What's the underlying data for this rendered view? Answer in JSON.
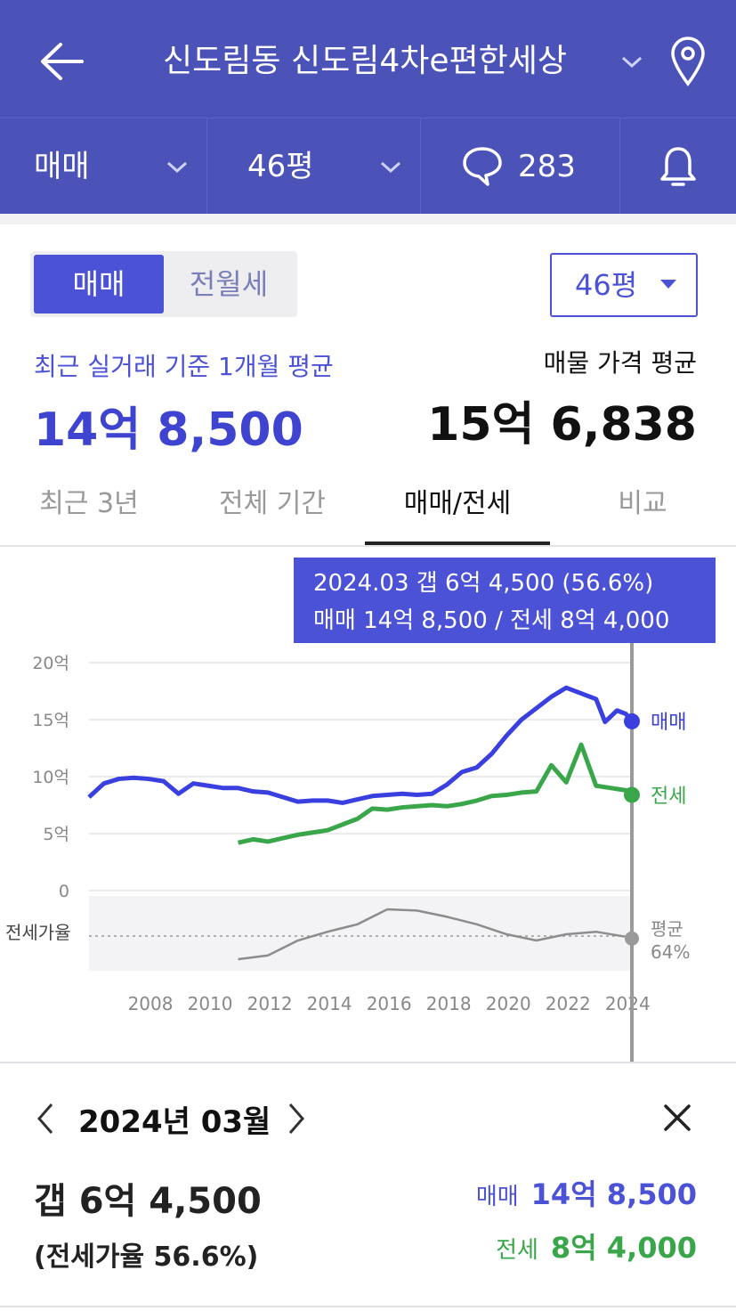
{
  "header": {
    "title": "신도림동 신도림4차e편한세상",
    "filter_type": "매매",
    "filter_size": "46평",
    "comment_count": "283"
  },
  "summary": {
    "toggle": [
      "매매",
      "전월세"
    ],
    "size_select": "46평",
    "left_label": "최근 실거래 기준 1개월 평균",
    "left_price": "14억 8,500",
    "right_label": "매물 가격 평균",
    "right_price": "15억 6,838"
  },
  "tabs": [
    "최근 3년",
    "전체 기간",
    "매매/전세",
    "비교"
  ],
  "tooltip": {
    "line1": "2024.03  갭 6억 4,500 (56.6%)",
    "line2": "매매 14억 8,500 / 전세 8억 4,000"
  },
  "colors": {
    "header": "#4b52b8",
    "accent": "#4b52d6",
    "sale": "#3a3fe0",
    "jeonse": "#3aa64a",
    "ratio": "#8c8c8c"
  },
  "chart_data": {
    "type": "line",
    "y_ticks": [
      "20억",
      "15억",
      "10억",
      "5억",
      "0"
    ],
    "ylim": [
      0,
      20
    ],
    "x_ticks": [
      "2008",
      "2010",
      "2012",
      "2014",
      "2016",
      "2018",
      "2020",
      "2022",
      "2024"
    ],
    "series": [
      {
        "name": "매매",
        "points": [
          [
            2006.0,
            8.2
          ],
          [
            2006.5,
            9.4
          ],
          [
            2007.0,
            9.8
          ],
          [
            2007.5,
            9.9
          ],
          [
            2008.0,
            9.8
          ],
          [
            2008.5,
            9.6
          ],
          [
            2009.0,
            8.5
          ],
          [
            2009.5,
            9.4
          ],
          [
            2010.0,
            9.2
          ],
          [
            2010.5,
            9.0
          ],
          [
            2011.0,
            9.0
          ],
          [
            2011.5,
            8.7
          ],
          [
            2012.0,
            8.6
          ],
          [
            2012.5,
            8.2
          ],
          [
            2013.0,
            7.8
          ],
          [
            2013.5,
            7.9
          ],
          [
            2014.0,
            7.9
          ],
          [
            2014.5,
            7.7
          ],
          [
            2015.0,
            8.0
          ],
          [
            2015.5,
            8.3
          ],
          [
            2016.0,
            8.4
          ],
          [
            2016.5,
            8.5
          ],
          [
            2017.0,
            8.4
          ],
          [
            2017.5,
            8.5
          ],
          [
            2018.0,
            9.3
          ],
          [
            2018.5,
            10.4
          ],
          [
            2019.0,
            10.8
          ],
          [
            2019.5,
            12.0
          ],
          [
            2020.0,
            13.6
          ],
          [
            2020.5,
            15.0
          ],
          [
            2021.0,
            16.0
          ],
          [
            2021.5,
            17.0
          ],
          [
            2022.0,
            17.8
          ],
          [
            2022.5,
            17.3
          ],
          [
            2023.0,
            16.8
          ],
          [
            2023.3,
            14.8
          ],
          [
            2023.7,
            15.8
          ],
          [
            2024.0,
            15.5
          ],
          [
            2024.2,
            14.85
          ]
        ]
      },
      {
        "name": "전세",
        "points": [
          [
            2011.0,
            4.2
          ],
          [
            2011.5,
            4.5
          ],
          [
            2012.0,
            4.3
          ],
          [
            2012.5,
            4.6
          ],
          [
            2013.0,
            4.9
          ],
          [
            2013.5,
            5.1
          ],
          [
            2014.0,
            5.3
          ],
          [
            2014.5,
            5.8
          ],
          [
            2015.0,
            6.3
          ],
          [
            2015.5,
            7.2
          ],
          [
            2016.0,
            7.1
          ],
          [
            2016.5,
            7.3
          ],
          [
            2017.0,
            7.4
          ],
          [
            2017.5,
            7.5
          ],
          [
            2018.0,
            7.4
          ],
          [
            2018.5,
            7.6
          ],
          [
            2019.0,
            7.9
          ],
          [
            2019.5,
            8.3
          ],
          [
            2020.0,
            8.4
          ],
          [
            2020.5,
            8.6
          ],
          [
            2021.0,
            8.7
          ],
          [
            2021.5,
            11.0
          ],
          [
            2022.0,
            9.5
          ],
          [
            2022.5,
            12.8
          ],
          [
            2023.0,
            9.2
          ],
          [
            2023.5,
            9.0
          ],
          [
            2024.0,
            8.8
          ],
          [
            2024.2,
            8.4
          ]
        ]
      },
      {
        "name": "전세가율",
        "points": [
          [
            2011.0,
            40
          ],
          [
            2012.0,
            43
          ],
          [
            2013.0,
            55
          ],
          [
            2014.0,
            62
          ],
          [
            2015.0,
            68
          ],
          [
            2016.0,
            80
          ],
          [
            2017.0,
            79
          ],
          [
            2018.0,
            74
          ],
          [
            2019.0,
            68
          ],
          [
            2020.0,
            60
          ],
          [
            2021.0,
            55
          ],
          [
            2022.0,
            60
          ],
          [
            2023.0,
            62
          ],
          [
            2024.0,
            58
          ],
          [
            2024.2,
            56.6
          ]
        ]
      }
    ],
    "labels": {
      "sale": "매매",
      "jeonse": "전세",
      "ratio": "전세가율",
      "avg": "평균",
      "avg_value": "64%"
    }
  },
  "detail": {
    "date": "2024년 03월",
    "gap": "갭 6억 4,500",
    "ratio": "(전세가율 56.6%)",
    "sale_label": "매매",
    "sale_value": "14억 8,500",
    "jeonse_label": "전세",
    "jeonse_value": "8억 4,000"
  }
}
